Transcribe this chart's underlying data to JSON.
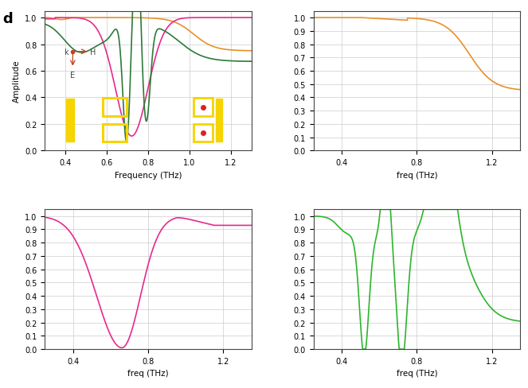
{
  "title_label": "d",
  "fig_bg": "#ffffff",
  "ax1": {
    "xlabel": "Frequency (THz)",
    "ylabel": "Amplitude",
    "xlim": [
      0.3,
      1.3
    ],
    "ylim": [
      0.0,
      1.05
    ],
    "xticks": [
      0.4,
      0.6,
      0.8,
      1.0,
      1.2
    ],
    "yticks": [
      0.0,
      0.2,
      0.4,
      0.6,
      0.8,
      1.0
    ],
    "orange_color": "#e8902a",
    "pink_color": "#e8298c",
    "green_color": "#2d7a3a"
  },
  "ax2": {
    "xlabel": "freq (THz)",
    "xlim": [
      0.25,
      1.35
    ],
    "ylim": [
      0,
      1.05
    ],
    "xticks": [
      0.4,
      0.8,
      1.2
    ],
    "yticks": [
      0,
      0.1,
      0.2,
      0.3,
      0.4,
      0.5,
      0.6,
      0.7,
      0.8,
      0.9,
      1.0
    ],
    "orange_color": "#e8902a"
  },
  "ax3": {
    "xlabel": "freq (THz)",
    "xlim": [
      0.25,
      1.35
    ],
    "ylim": [
      0,
      1.05
    ],
    "xticks": [
      0.4,
      0.8,
      1.2
    ],
    "yticks": [
      0,
      0.1,
      0.2,
      0.3,
      0.4,
      0.5,
      0.6,
      0.7,
      0.8,
      0.9,
      1.0
    ],
    "pink_color": "#e8298c"
  },
  "ax4": {
    "xlabel": "freq (THz)",
    "xlim": [
      0.25,
      1.35
    ],
    "ylim": [
      0,
      1.05
    ],
    "xticks": [
      0.4,
      0.8,
      1.2
    ],
    "yticks": [
      0,
      0.1,
      0.2,
      0.3,
      0.4,
      0.5,
      0.6,
      0.7,
      0.8,
      0.9,
      1.0
    ],
    "green_color": "#2db52d"
  },
  "inset_blue": "#4dbbd5",
  "inset_yellow": "#f5d400",
  "inset_red": "#e02020",
  "grid_color": "#cccccc",
  "annotation_arrow_color": "#c44020",
  "annotation_text_color": "#444444"
}
